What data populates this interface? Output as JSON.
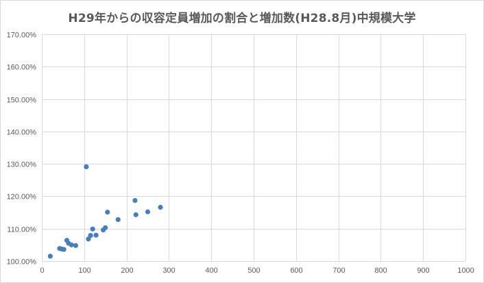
{
  "chart_data": {
    "type": "scatter",
    "title": "H29年からの収容定員増加の割合と増加数(H28.8月)中規模大学",
    "xlabel": "",
    "ylabel": "",
    "xlim": [
      0,
      1000
    ],
    "ylim": [
      100,
      170
    ],
    "x_ticks": [
      "0",
      "100",
      "200",
      "300",
      "400",
      "500",
      "600",
      "700",
      "800",
      "900",
      "1000"
    ],
    "y_ticks": [
      "100.00%",
      "110.00%",
      "120.00%",
      "130.00%",
      "140.00%",
      "150.00%",
      "160.00%",
      "170.00%"
    ],
    "grid": true,
    "legend": "none",
    "marker_color": "#4a7ebb",
    "grid_color": "#d9d9d9",
    "series": [
      {
        "points": [
          {
            "x": 20,
            "y": 101.5
          },
          {
            "x": 42,
            "y": 103.9
          },
          {
            "x": 47,
            "y": 103.7
          },
          {
            "x": 52,
            "y": 103.6
          },
          {
            "x": 59,
            "y": 106.4
          },
          {
            "x": 63,
            "y": 105.5
          },
          {
            "x": 70,
            "y": 105.0
          },
          {
            "x": 80,
            "y": 104.8
          },
          {
            "x": 105,
            "y": 129.1
          },
          {
            "x": 110,
            "y": 106.8
          },
          {
            "x": 115,
            "y": 107.9
          },
          {
            "x": 120,
            "y": 109.9
          },
          {
            "x": 128,
            "y": 108.0
          },
          {
            "x": 145,
            "y": 109.6
          },
          {
            "x": 150,
            "y": 110.3
          },
          {
            "x": 155,
            "y": 115.1
          },
          {
            "x": 180,
            "y": 112.8
          },
          {
            "x": 220,
            "y": 118.7
          },
          {
            "x": 222,
            "y": 114.3
          },
          {
            "x": 250,
            "y": 115.2
          },
          {
            "x": 280,
            "y": 116.6
          }
        ]
      }
    ]
  }
}
